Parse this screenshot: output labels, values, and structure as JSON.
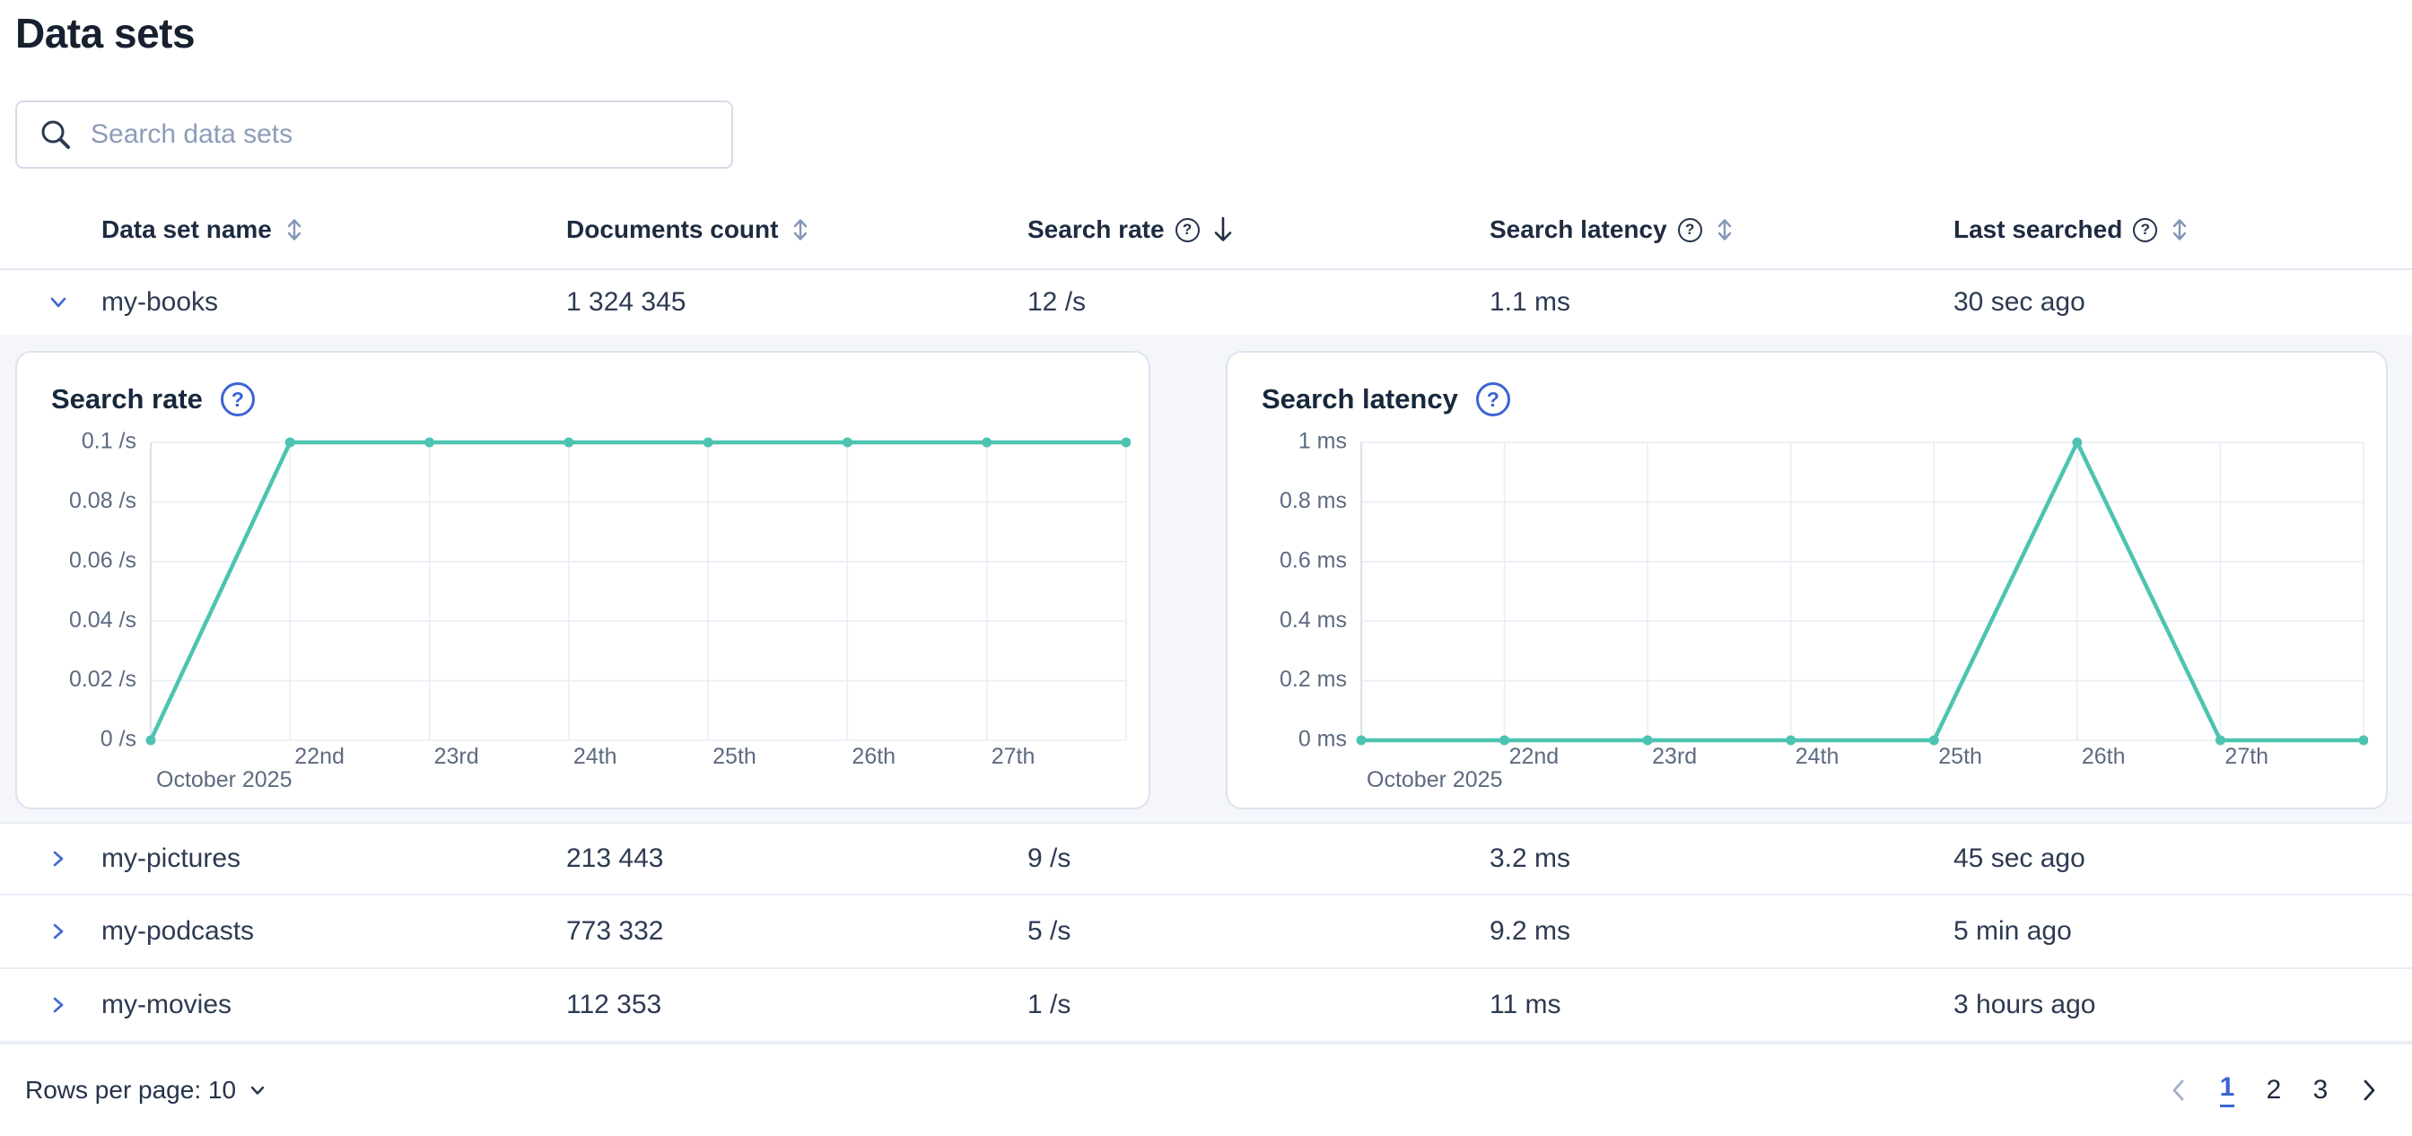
{
  "header": {
    "title": "Data sets"
  },
  "search": {
    "placeholder": "Search data sets"
  },
  "icons": {
    "question_glyph": "?"
  },
  "colors": {
    "primary_blue": "#3b64d4",
    "line_teal": "#4dc3b1",
    "gridline": "#e9edf5",
    "axis": "#d7dee9",
    "tick_text": "#5d6a80",
    "section_background": "#f4f6fb"
  },
  "table": {
    "columns": [
      {
        "label": "Data set name",
        "sortable": true
      },
      {
        "label": "Documents count",
        "sortable": true
      },
      {
        "label": "Search rate",
        "help": true,
        "sorted": "desc"
      },
      {
        "label": "Search latency",
        "help": true,
        "sortable": true
      },
      {
        "label": "Last searched",
        "help": true,
        "sortable": true
      }
    ],
    "rows": [
      {
        "name": "my-books",
        "documents_count": "1 324 345",
        "search_rate": "12 /s",
        "search_latency": "1.1 ms",
        "last_searched": "30 sec ago",
        "expanded": true
      },
      {
        "name": "my-pictures",
        "documents_count": "213 443",
        "search_rate": "9 /s",
        "search_latency": "3.2 ms",
        "last_searched": "45 sec ago",
        "expanded": false
      },
      {
        "name": "my-podcasts",
        "documents_count": "773 332",
        "search_rate": "5 /s",
        "search_latency": "9.2 ms",
        "last_searched": "5 min ago",
        "expanded": false
      },
      {
        "name": "my-movies",
        "documents_count": "112 353",
        "search_rate": "1 /s",
        "search_latency": "11 ms",
        "last_searched": "3 hours ago",
        "expanded": false
      }
    ]
  },
  "chart_data": [
    {
      "type": "line",
      "title": "Search rate",
      "month_label": "October 2025",
      "x_days": [
        21,
        22,
        23,
        24,
        25,
        26,
        27,
        28
      ],
      "values": [
        0,
        0.1,
        0.1,
        0.1,
        0.1,
        0.1,
        0.1,
        0.1
      ],
      "x_tick_days": [
        22,
        23,
        24,
        25,
        26,
        27
      ],
      "x_tick_labels": [
        "22nd",
        "23rd",
        "24th",
        "25th",
        "26th",
        "27th"
      ],
      "y_ticks": [
        {
          "label": "0.1 /s",
          "value": 0.1
        },
        {
          "label": "0.08 /s",
          "value": 0.08
        },
        {
          "label": "0.06 /s",
          "value": 0.06
        },
        {
          "label": "0.04 /s",
          "value": 0.04
        },
        {
          "label": "0.02 /s",
          "value": 0.02
        },
        {
          "label": "0 /s",
          "value": 0
        }
      ],
      "ylim": [
        0,
        0.1
      ],
      "line_color": "#4dc3b1",
      "grid": true,
      "legend": "none"
    },
    {
      "type": "line",
      "title": "Search latency",
      "month_label": "October 2025",
      "x_days": [
        21,
        22,
        23,
        24,
        25,
        26,
        27,
        28
      ],
      "values": [
        0,
        0,
        0,
        0,
        0,
        1,
        0,
        0
      ],
      "x_tick_days": [
        22,
        23,
        24,
        25,
        26,
        27
      ],
      "x_tick_labels": [
        "22nd",
        "23rd",
        "24th",
        "25th",
        "26th",
        "27th"
      ],
      "y_ticks": [
        {
          "label": "1 ms",
          "value": 1
        },
        {
          "label": "0.8 ms",
          "value": 0.8
        },
        {
          "label": "0.6 ms",
          "value": 0.6
        },
        {
          "label": "0.4 ms",
          "value": 0.4
        },
        {
          "label": "0.2 ms",
          "value": 0.2
        },
        {
          "label": "0 ms",
          "value": 0
        }
      ],
      "ylim": [
        0,
        1
      ],
      "line_color": "#4dc3b1",
      "grid": true,
      "legend": "none"
    }
  ],
  "footer": {
    "rows_per_page_label": "Rows per page: 10",
    "pagination": {
      "pages": [
        "1",
        "2",
        "3"
      ],
      "active": "1"
    }
  }
}
